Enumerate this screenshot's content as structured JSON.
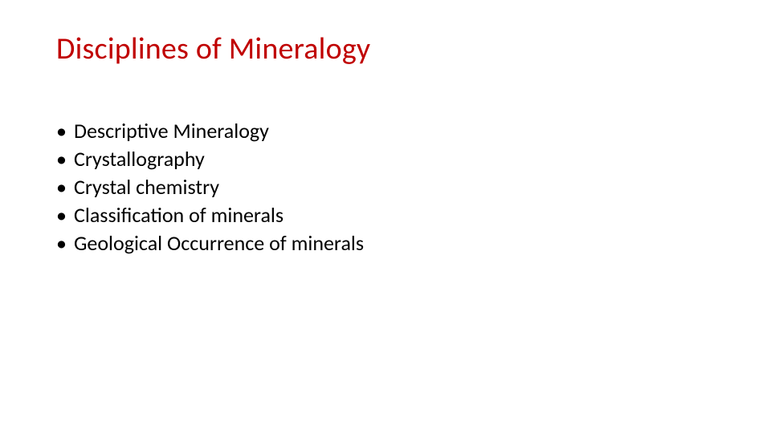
{
  "slide": {
    "title": "Disciplines of Mineralogy",
    "title_color": "#c00000",
    "title_fontsize": 38,
    "background_color": "#ffffff",
    "bullets": [
      {
        "text": "Descriptive Mineralogy",
        "color": "#000000"
      },
      {
        "text": "Crystallography",
        "color": "#2e7d32"
      },
      {
        "text": "Crystal chemistry",
        "color": "#000000"
      },
      {
        "text": "Classification of minerals",
        "color": "#6a1b9a"
      },
      {
        "text": "Geological Occurrence of minerals",
        "color": "#000000"
      }
    ],
    "bullet_fontsize": 26,
    "bullet_marker": "•",
    "font_family": "Calibri"
  }
}
